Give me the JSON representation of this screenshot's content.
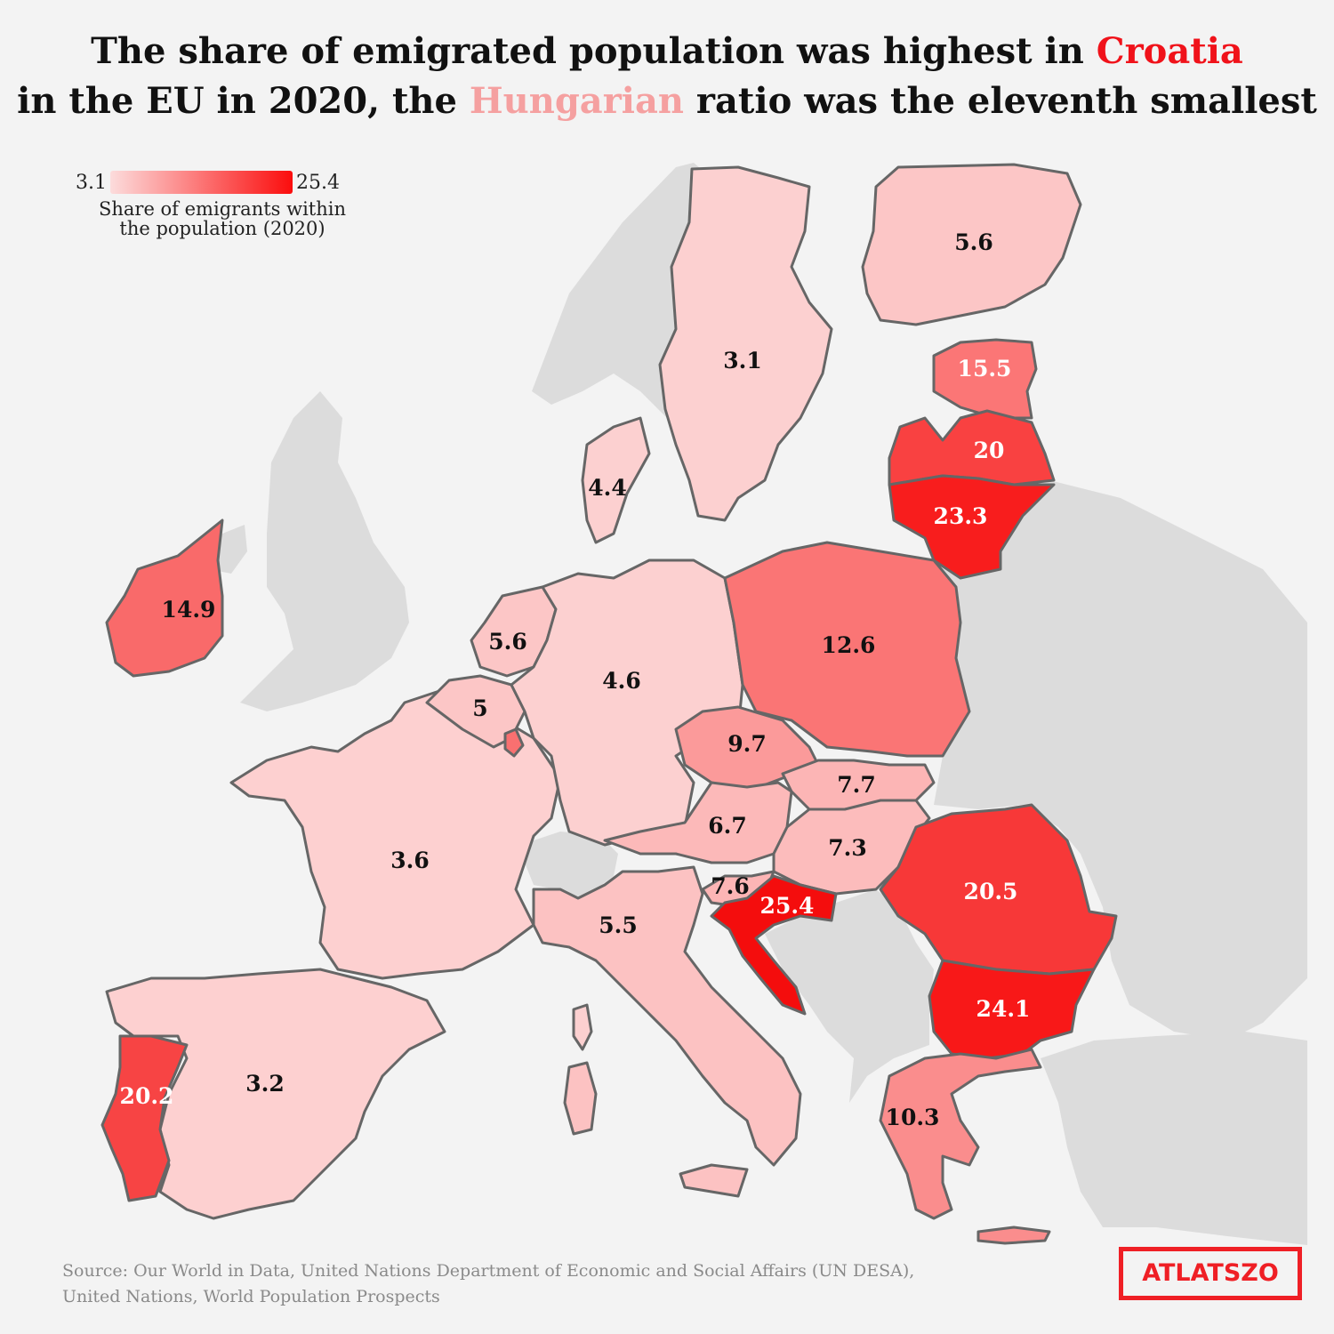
{
  "title": {
    "line1_before": "The share of emigrated population was highest in ",
    "line1_highlight": "Croatia",
    "line2_before": "in the EU in 2020, the ",
    "line2_highlight": "Hungarian",
    "line2_after": " ratio was the eleventh smallest"
  },
  "legend": {
    "min": "3.1",
    "max": "25.4",
    "label_line1": "Share of emigrants within",
    "label_line2": "the population (2020)",
    "color_low": "#fcdcdc",
    "color_high": "#fb0d0d"
  },
  "source": {
    "line1": "Source: Our World in Data, United Nations Department of Economic and Social Affairs (UN DESA),",
    "line2": "United Nations, World Population Prospects"
  },
  "logo": "ATLATSZO",
  "colors": {
    "background": "#f3f3f3",
    "non_eu_land": "#dcdcdc",
    "croatia_highlight": "#f0121a",
    "hungary_highlight": "#f5a0a0"
  },
  "countries": [
    {
      "id": "sweden",
      "value": "3.1"
    },
    {
      "id": "finland",
      "value": "5.6"
    },
    {
      "id": "estonia",
      "value": "15.5"
    },
    {
      "id": "latvia",
      "value": "20"
    },
    {
      "id": "lithuania",
      "value": "23.3"
    },
    {
      "id": "denmark",
      "value": "4.4"
    },
    {
      "id": "ireland",
      "value": "14.9"
    },
    {
      "id": "netherlands",
      "value": "5.6"
    },
    {
      "id": "belgium",
      "value": "5"
    },
    {
      "id": "germany",
      "value": "4.6"
    },
    {
      "id": "poland",
      "value": "12.6"
    },
    {
      "id": "czechia",
      "value": "9.7"
    },
    {
      "id": "slovakia",
      "value": "7.7"
    },
    {
      "id": "austria",
      "value": "6.7"
    },
    {
      "id": "hungary",
      "value": "7.3"
    },
    {
      "id": "romania",
      "value": "20.5"
    },
    {
      "id": "france",
      "value": "3.6"
    },
    {
      "id": "slovenia",
      "value": "7.6"
    },
    {
      "id": "croatia",
      "value": "25.4"
    },
    {
      "id": "italy",
      "value": "5.5"
    },
    {
      "id": "bulgaria",
      "value": "24.1"
    },
    {
      "id": "portugal",
      "value": "20.2"
    },
    {
      "id": "spain",
      "value": "3.2"
    },
    {
      "id": "greece",
      "value": "10.3"
    }
  ]
}
